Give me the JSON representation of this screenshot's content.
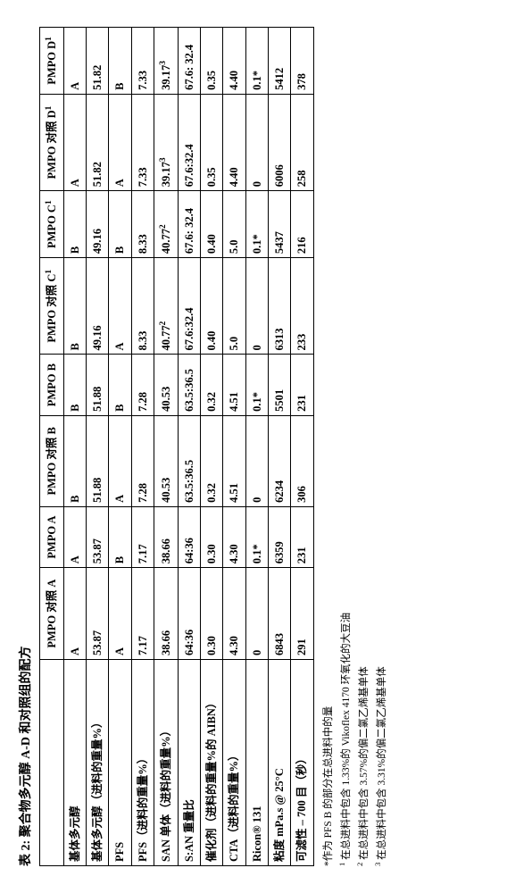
{
  "caption": "表 2: 聚合物多元醇 A-D 和对照组的配方",
  "columns": [
    "",
    "PMPO 对照 A",
    "PMPO A",
    "PMPO 对照 B",
    "PMPO B",
    "PMPO 对照 C¹",
    "PMPO C¹",
    "PMPO 对照 D¹",
    "PMPO D¹"
  ],
  "rows": [
    {
      "label": "基体多元醇",
      "cells": [
        "A",
        "A",
        "B",
        "B",
        "B",
        "B",
        "A",
        "A"
      ]
    },
    {
      "label": "基体多元醇（进料的重量%）",
      "cells": [
        "53.87",
        "53.87",
        "51.88",
        "51.88",
        "49.16",
        "49.16",
        "51.82",
        "51.82"
      ]
    },
    {
      "label": "PFS",
      "cells": [
        "A",
        "B",
        "A",
        "B",
        "A",
        "B",
        "A",
        "B"
      ]
    },
    {
      "label": "PFS（进料的重量%）",
      "cells": [
        "7.17",
        "7.17",
        "7.28",
        "7.28",
        "8.33",
        "8.33",
        "7.33",
        "7.33"
      ]
    },
    {
      "label": "SAN 单体（进料的重量%）",
      "cells": [
        "38.66",
        "38.66",
        "40.53",
        "40.53",
        "40.77²",
        "40.77²",
        "39.17³",
        "39.17³"
      ]
    },
    {
      "label": "S:AN 重量比",
      "cells": [
        "64:36",
        "64:36",
        "63.5:36.5",
        "63.5:36.5",
        "67.6:32.4",
        "67.6: 32.4",
        "67.6:32.4",
        "67.6: 32.4"
      ]
    },
    {
      "label": "催化剂（进料的重量%的 AIBN）",
      "cells": [
        "0.30",
        "0.30",
        "0.32",
        "0.32",
        "0.40",
        "0.40",
        "0.35",
        "0.35"
      ]
    },
    {
      "label": "CTA（进料的重量%）",
      "cells": [
        "4.30",
        "4.30",
        "4.51",
        "4.51",
        "5.0",
        "5.0",
        "4.40",
        "4.40"
      ]
    },
    {
      "label": "Ricon® 131",
      "cells": [
        "0",
        "0.1*",
        "0",
        "0.1*",
        "0",
        "0.1*",
        "0",
        "0.1*"
      ]
    },
    {
      "label": "粘度 mPa.s @ 25°C",
      "cells": [
        "6843",
        "6359",
        "6234",
        "5501",
        "6313",
        "5437",
        "6006",
        "5412"
      ]
    },
    {
      "label": "可滤性 – 700 目（秒）",
      "cells": [
        "291",
        "231",
        "306",
        "231",
        "233",
        "216",
        "258",
        "378"
      ]
    }
  ],
  "footnotes": [
    "*作为 PFS B 的部分在总进料中的量",
    "¹ 在总进料中包含 1.33%的 Vikoflex 4170 环氧化的大豆油",
    "² 在总进料中包含 3.57%的偏二氯乙烯基单体",
    "³ 在总进料中包含 3.31%的偏二氯乙烯基单体"
  ]
}
